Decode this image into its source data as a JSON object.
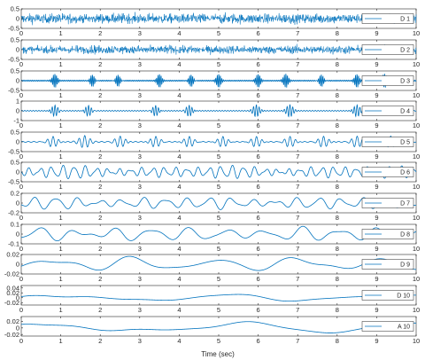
{
  "chart_data": {
    "type": "line",
    "xlabel": "Time (sec)",
    "xlim": [
      0,
      10
    ],
    "x_ticks": [
      "0",
      "1",
      "2",
      "3",
      "4",
      "5",
      "6",
      "7",
      "8",
      "9",
      "10"
    ],
    "legend_placement": "right",
    "line_color": "#0072bd",
    "panels": [
      {
        "name": "D 1",
        "ylim": [
          -0.5,
          0.5
        ],
        "y_ticks": [
          "0.5",
          "0",
          "-0.5"
        ],
        "y_tick_values": [
          0.5,
          0,
          -0.5
        ],
        "kind": "noise",
        "amplitude": 0.35
      },
      {
        "name": "D 2",
        "ylim": [
          -0.5,
          0.5
        ],
        "y_ticks": [
          "0.5",
          "0",
          "-0.5"
        ],
        "y_tick_values": [
          0.5,
          0,
          -0.5
        ],
        "kind": "noise",
        "amplitude": 0.3
      },
      {
        "name": "D 3",
        "ylim": [
          -0.5,
          0.5
        ],
        "y_ticks": [
          "0.5",
          "0",
          "-0.5"
        ],
        "y_tick_values": [
          0.5,
          0,
          -0.5
        ],
        "kind": "bursts",
        "amplitude": 0.35,
        "frequency_hz": 26,
        "burst_times_s": [
          0.85,
          1.8,
          2.45,
          3.5,
          4.3,
          5.0,
          6.0,
          6.7,
          7.6,
          8.5,
          9.2
        ]
      },
      {
        "name": "D 4",
        "ylim": [
          -1,
          1
        ],
        "y_ticks": [
          "1",
          "0",
          "-1"
        ],
        "y_tick_values": [
          1,
          0,
          -1
        ],
        "kind": "bursts",
        "amplitude": 0.6,
        "frequency_hz": 14,
        "burst_times_s": [
          0.85,
          1.7,
          3.4,
          4.25,
          5.95,
          6.8,
          8.5
        ]
      },
      {
        "name": "D 5",
        "ylim": [
          -0.5,
          0.5
        ],
        "y_ticks": [
          "0.5",
          "0",
          "-0.5"
        ],
        "y_tick_values": [
          0.5,
          0,
          -0.5
        ],
        "kind": "bursts",
        "amplitude": 0.3,
        "frequency_hz": 7,
        "burst_times_s": [
          0.8,
          1.6,
          2.5,
          3.4,
          4.25,
          5.1,
          5.95,
          6.8,
          7.65,
          8.5,
          9.35
        ]
      },
      {
        "name": "D 6",
        "ylim": [
          -0.5,
          0.5
        ],
        "y_ticks": [
          "0.5",
          "0",
          "-0.5"
        ],
        "y_tick_values": [
          0.5,
          0,
          -0.5
        ],
        "kind": "wave",
        "amplitude": 0.3,
        "frequency_hz": 3.5
      },
      {
        "name": "D 7",
        "ylim": [
          -0.2,
          0.2
        ],
        "y_ticks": [
          "0.2",
          "0",
          "-0.2"
        ],
        "y_tick_values": [
          0.2,
          0,
          -0.2
        ],
        "kind": "wave",
        "amplitude": 0.12,
        "frequency_hz": 1.8
      },
      {
        "name": "D 8",
        "ylim": [
          -0.1,
          0.1
        ],
        "y_ticks": [
          "0.1",
          "0",
          "-0.1"
        ],
        "y_tick_values": [
          0.1,
          0,
          -0.1
        ],
        "kind": "wave",
        "amplitude": 0.07,
        "frequency_hz": 1.05
      },
      {
        "name": "D 9",
        "ylim": [
          -0.02,
          0.02
        ],
        "y_ticks": [
          "0.02",
          "0",
          "-0.02"
        ],
        "y_tick_values": [
          0.02,
          0,
          -0.02
        ],
        "kind": "wave",
        "amplitude": 0.015,
        "frequency_hz": 0.48
      },
      {
        "name": "D 10",
        "ylim": [
          -0.03,
          0.05
        ],
        "y_ticks": [
          "0.04",
          "0.02",
          "0",
          "-0.02"
        ],
        "y_tick_values": [
          0.04,
          0.02,
          0,
          -0.02
        ],
        "kind": "wave",
        "amplitude": 0.018,
        "frequency_hz": 0.24
      },
      {
        "name": "A 10",
        "ylim": [
          -0.025,
          0.035
        ],
        "y_ticks": [
          "0.02",
          "0",
          "-0.02"
        ],
        "y_tick_values": [
          0.02,
          0,
          -0.02
        ],
        "kind": "wave",
        "amplitude": 0.018,
        "frequency_hz": 0.21
      }
    ]
  }
}
